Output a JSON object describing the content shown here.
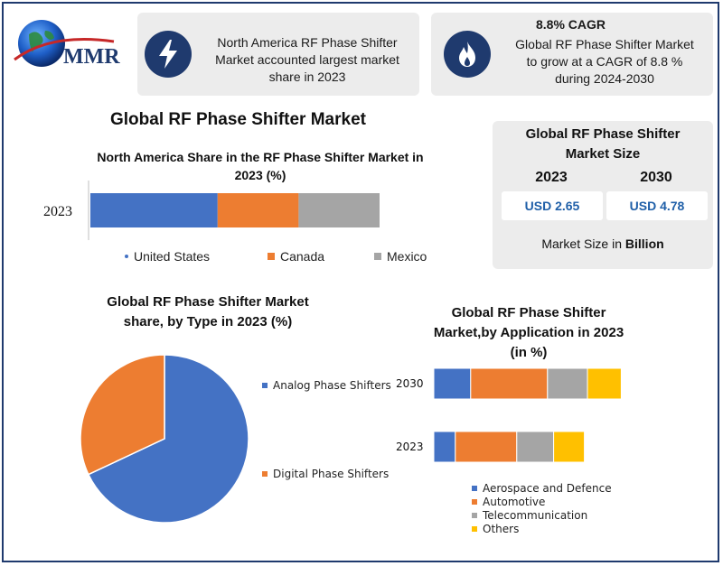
{
  "logo": {
    "text": "MMR"
  },
  "colors": {
    "navy": "#1f3a6e",
    "blue": "#4472c4",
    "orange": "#ed7d31",
    "gray": "#a5a5a5",
    "yellow": "#ffc000",
    "value_blue": "#1f5fa8"
  },
  "card1": {
    "icon": "lightning-bolt-icon",
    "text_lines": [
      "North America RF Phase Shifter",
      "Market accounted largest market",
      "share in 2023"
    ]
  },
  "card2": {
    "icon": "flame-icon",
    "title": "8.8% CAGR",
    "text_lines": [
      "Global RF Phase Shifter Market",
      "to grow at a CAGR of 8.8 %",
      "during 2024-2030"
    ]
  },
  "main_title": "Global RF Phase Shifter Market",
  "market_size": {
    "title_lines": [
      "Global RF Phase Shifter",
      "Market Size"
    ],
    "year1": "2023",
    "year2": "2030",
    "value1": "USD 2.65",
    "value2": "USD 4.78",
    "footer_prefix": "Market Size in ",
    "footer_bold": "Billion"
  },
  "chart_data": [
    {
      "type": "bar",
      "orientation": "horizontal-stacked",
      "title": "North America Share in the RF Phase Shifter Market in 2023 (%)",
      "title_lines": [
        "North America Share in the RF Phase Shifter Market in",
        "2023 (%)"
      ],
      "categories": [
        "2023"
      ],
      "series": [
        {
          "name": "United States",
          "color": "#4472c4",
          "values": [
            44
          ]
        },
        {
          "name": "Canada",
          "color": "#ed7d31",
          "values": [
            28
          ]
        },
        {
          "name": "Mexico",
          "color": "#a5a5a5",
          "values": [
            28
          ]
        }
      ],
      "legend": "bottom"
    },
    {
      "type": "pie",
      "title": "Global RF Phase Shifter Market share, by Type in 2023 (%)",
      "title_lines": [
        "Global RF Phase Shifter Market",
        "share, by Type in 2023  (%)"
      ],
      "categories": [
        "Analog Phase Shifters",
        "Digital Phase Shifters"
      ],
      "values": [
        68,
        32
      ],
      "colors": [
        "#4472c4",
        "#ed7d31"
      ],
      "legend": "right"
    },
    {
      "type": "bar",
      "orientation": "horizontal-stacked",
      "title": "Global RF Phase Shifter Market,by Application in 2023 (in %)",
      "title_lines": [
        "Global RF  Phase Shifter",
        "Market,by Application in 2023",
        "(in %)"
      ],
      "categories": [
        "2030",
        "2023"
      ],
      "series": [
        {
          "name": "Aerospace and Defence",
          "color": "#4472c4",
          "values": [
            12,
            7
          ]
        },
        {
          "name": "Automotive",
          "color": "#ed7d31",
          "values": [
            25,
            20
          ]
        },
        {
          "name": "Telecommunication",
          "color": "#a5a5a5",
          "values": [
            13,
            12
          ]
        },
        {
          "name": "Others",
          "color": "#ffc000",
          "values": [
            11,
            10
          ]
        }
      ],
      "legend": "bottom"
    }
  ]
}
